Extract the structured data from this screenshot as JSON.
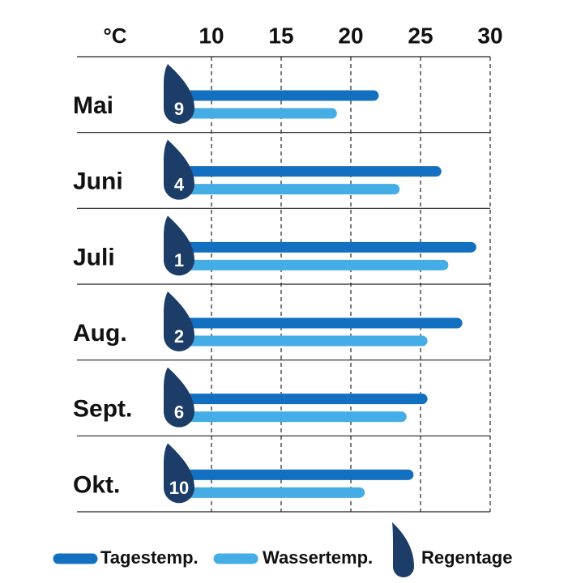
{
  "chart_data": {
    "type": "bar",
    "unit": "°C",
    "categories": [
      "Mai",
      "Juni",
      "Juli",
      "Aug.",
      "Sept.",
      "Okt."
    ],
    "series": [
      {
        "name": "Tagestemp.",
        "color": "#1370c0",
        "values": [
          22,
          26.5,
          29,
          28,
          25.5,
          24.5
        ]
      },
      {
        "name": "Wassertemp.",
        "color": "#45ade6",
        "values": [
          19,
          23.5,
          27,
          25.5,
          24,
          21
        ]
      }
    ],
    "rain": {
      "name": "Regentage",
      "color": "#1d3d69",
      "values": [
        9,
        4,
        1,
        2,
        6,
        10
      ]
    },
    "xlim": [
      8,
      30
    ],
    "xticks": [
      10,
      15,
      20,
      25,
      30
    ],
    "grid": true
  }
}
